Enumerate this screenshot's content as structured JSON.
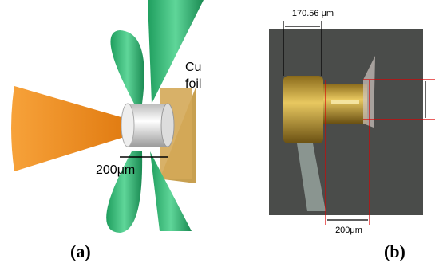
{
  "panel_a": {
    "foil_label": [
      "Cu",
      "foil"
    ],
    "scale_label": "200μm",
    "caption": "(a)"
  },
  "panel_b": {
    "top_label": "170.56 μm",
    "bottom_label": "200μm",
    "caption": "(b)"
  }
}
